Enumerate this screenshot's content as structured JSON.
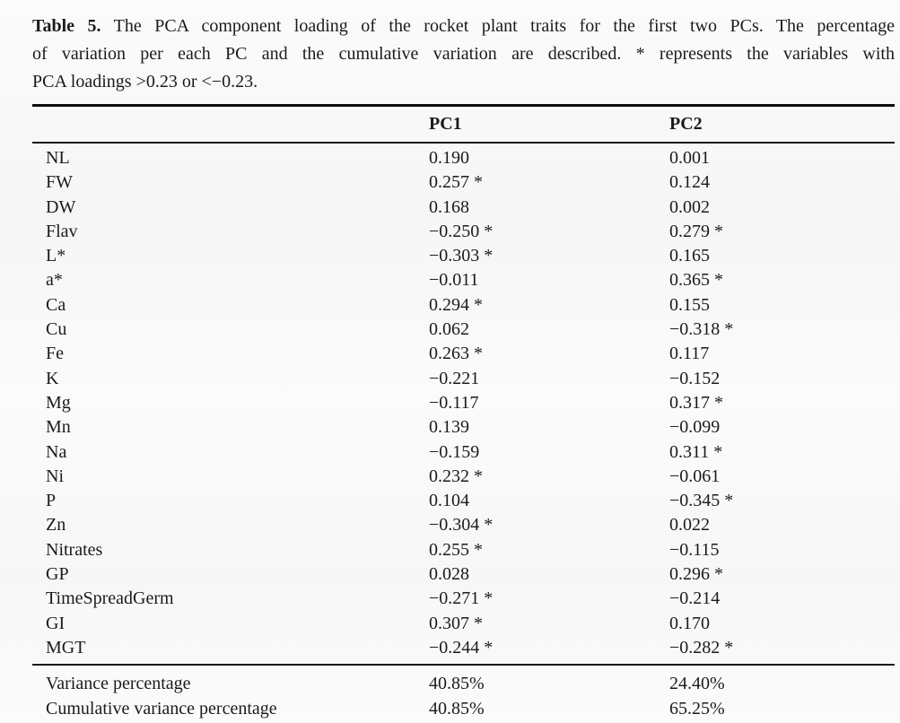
{
  "caption": {
    "label": "Table 5.",
    "line1_rest": "The PCA component loading of the rocket plant traits for the first two PCs. The percentage",
    "line2": "of variation per each PC and the cumulative variation are described. * represents the variables with",
    "line3": "PCA loadings >0.23 or <−0.23."
  },
  "table": {
    "columns": [
      "",
      "PC1",
      "PC2"
    ],
    "rows": [
      {
        "trait": "NL",
        "pc1": "0.190",
        "pc2": "0.001"
      },
      {
        "trait": "FW",
        "pc1": "0.257 *",
        "pc2": "0.124"
      },
      {
        "trait": "DW",
        "pc1": "0.168",
        "pc2": "0.002"
      },
      {
        "trait": "Flav",
        "pc1": "−0.250 *",
        "pc2": "0.279 *"
      },
      {
        "trait": "L*",
        "pc1": "−0.303 *",
        "pc2": "0.165"
      },
      {
        "trait": "a*",
        "pc1": "−0.011",
        "pc2": "0.365 *"
      },
      {
        "trait": "Ca",
        "pc1": "0.294 *",
        "pc2": "0.155"
      },
      {
        "trait": "Cu",
        "pc1": "0.062",
        "pc2": "−0.318 *"
      },
      {
        "trait": "Fe",
        "pc1": "0.263 *",
        "pc2": "0.117"
      },
      {
        "trait": "K",
        "pc1": "−0.221",
        "pc2": "−0.152"
      },
      {
        "trait": "Mg",
        "pc1": "−0.117",
        "pc2": "0.317 *"
      },
      {
        "trait": "Mn",
        "pc1": "0.139",
        "pc2": "−0.099"
      },
      {
        "trait": "Na",
        "pc1": "−0.159",
        "pc2": "0.311 *"
      },
      {
        "trait": "Ni",
        "pc1": "0.232 *",
        "pc2": "−0.061"
      },
      {
        "trait": "P",
        "pc1": "0.104",
        "pc2": "−0.345 *"
      },
      {
        "trait": "Zn",
        "pc1": "−0.304 *",
        "pc2": "0.022"
      },
      {
        "trait": "Nitrates",
        "pc1": "0.255 *",
        "pc2": "−0.115"
      },
      {
        "trait": "GP",
        "pc1": "0.028",
        "pc2": "0.296 *"
      },
      {
        "trait": "TimeSpreadGerm",
        "pc1": "−0.271 *",
        "pc2": "−0.214"
      },
      {
        "trait": "GI",
        "pc1": "0.307 *",
        "pc2": "0.170"
      },
      {
        "trait": "MGT",
        "pc1": "−0.244 *",
        "pc2": "−0.282 *"
      }
    ],
    "footer_rows": [
      {
        "trait": "Variance percentage",
        "pc1": "40.85%",
        "pc2": "24.40%"
      },
      {
        "trait": "Cumulative variance percentage",
        "pc1": "40.85%",
        "pc2": "65.25%"
      }
    ]
  }
}
